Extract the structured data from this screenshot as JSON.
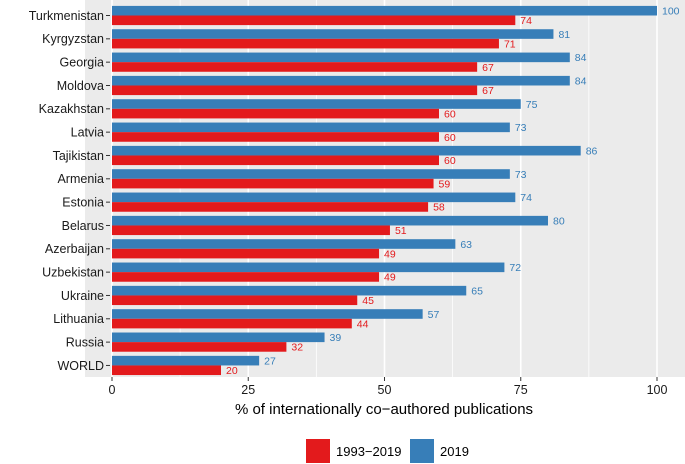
{
  "chart_data": {
    "type": "bar",
    "orientation": "horizontal",
    "categories": [
      "Turkmenistan",
      "Kyrgyzstan",
      "Georgia",
      "Moldova",
      "Kazakhstan",
      "Latvia",
      "Tajikistan",
      "Armenia",
      "Estonia",
      "Belarus",
      "Azerbaijan",
      "Uzbekistan",
      "Ukraine",
      "Lithuania",
      "Russia",
      "WORLD"
    ],
    "series": [
      {
        "name": "1993−2019",
        "color": "#E31A1C",
        "values": [
          74,
          71,
          67,
          67,
          60,
          60,
          60,
          59,
          58,
          51,
          49,
          49,
          45,
          44,
          32,
          20
        ]
      },
      {
        "name": "2019",
        "color": "#377EB8",
        "values": [
          100,
          81,
          84,
          84,
          75,
          73,
          86,
          73,
          74,
          80,
          63,
          72,
          65,
          57,
          39,
          27
        ]
      }
    ],
    "xlabel": "% of internationally co−authored publications",
    "ylabel": "",
    "xlim": [
      0,
      100
    ],
    "xticks": [
      0,
      25,
      50,
      75,
      100
    ],
    "grid": true,
    "legend_position": "bottom",
    "panel_background": "#EBEBEB"
  }
}
